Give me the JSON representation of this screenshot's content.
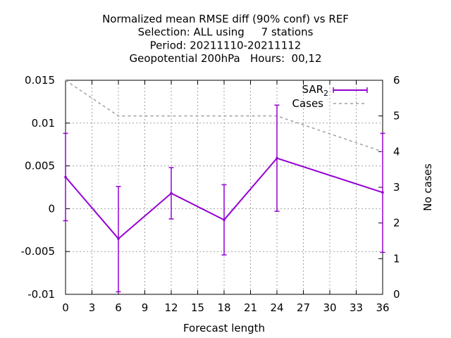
{
  "chart_data": {
    "type": "line",
    "title": [
      "Normalized mean RMSE diff (90% conf) vs REF",
      "Selection: ALL using     7 stations",
      "Period: 20211110-20211112",
      "Geopotential 200hPa   Hours:  00,12"
    ],
    "xlabel": "Forecast length",
    "ylabel": "",
    "y2label": "No cases",
    "xlim": [
      0,
      36
    ],
    "ylim": [
      -0.01,
      0.015
    ],
    "y2lim": [
      0,
      6
    ],
    "xticks": [
      0,
      3,
      6,
      9,
      12,
      15,
      18,
      21,
      24,
      27,
      30,
      33,
      36
    ],
    "yticks": [
      "-0.01",
      "-0.005",
      "0",
      "0.005",
      "0.01",
      "0.015"
    ],
    "yticks_values": [
      -0.01,
      -0.005,
      0,
      0.005,
      0.01,
      0.015
    ],
    "y2ticks": [
      0,
      1,
      2,
      3,
      4,
      5,
      6
    ],
    "grid": true,
    "legend_position": "top-right",
    "series": [
      {
        "name": "SAR",
        "name_subscript": "2",
        "color": "#9400d3",
        "x": [
          0,
          6,
          12,
          18,
          24,
          36
        ],
        "y": [
          0.0037,
          -0.0035,
          0.0018,
          -0.0013,
          0.0059,
          0.0019
        ],
        "err_low": [
          -0.0014,
          -0.0097,
          -0.0012,
          -0.0054,
          -0.0003,
          -0.0051
        ],
        "err_high": [
          0.0088,
          0.0026,
          0.0048,
          0.0028,
          0.0121,
          0.0088
        ]
      },
      {
        "name": "Cases",
        "color": "#a0a0a0",
        "axis": "y2",
        "x": [
          0,
          6,
          12,
          18,
          24,
          36
        ],
        "y": [
          6,
          5,
          5,
          5,
          5,
          4
        ]
      }
    ]
  }
}
